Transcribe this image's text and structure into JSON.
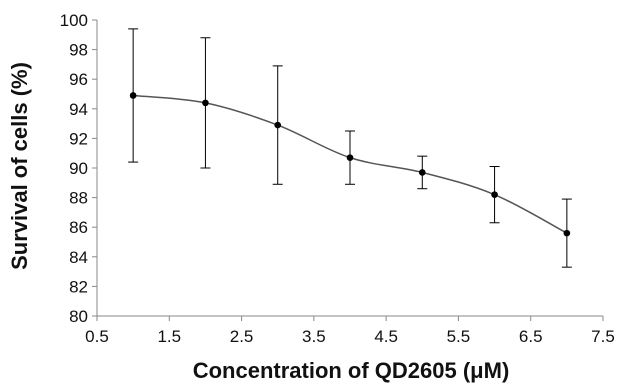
{
  "chart_data": {
    "type": "line",
    "xlabel": "Concentration of QD2605 (μM)",
    "ylabel": "Survival of cells (%)",
    "xlim": [
      0.5,
      7.5
    ],
    "ylim": [
      80,
      100
    ],
    "x_ticks": [
      "0.5",
      "1.5",
      "2.5",
      "3.5",
      "4.5",
      "5.5",
      "6.5",
      "7.5"
    ],
    "y_ticks": [
      "80",
      "82",
      "84",
      "86",
      "88",
      "90",
      "92",
      "94",
      "96",
      "98",
      "100"
    ],
    "grid": false,
    "legend": "none",
    "smooth": true,
    "series": [
      {
        "x": [
          1,
          2,
          3,
          4,
          5,
          6,
          7
        ],
        "y": [
          94.9,
          94.4,
          92.9,
          90.7,
          89.7,
          88.2,
          85.6
        ],
        "error": [
          4.5,
          4.4,
          4.0,
          1.8,
          1.1,
          1.9,
          2.3
        ]
      }
    ],
    "colors": {
      "line": "#555555",
      "marker": "#000000",
      "error_bar": "#000000",
      "axis": "#888888"
    }
  }
}
